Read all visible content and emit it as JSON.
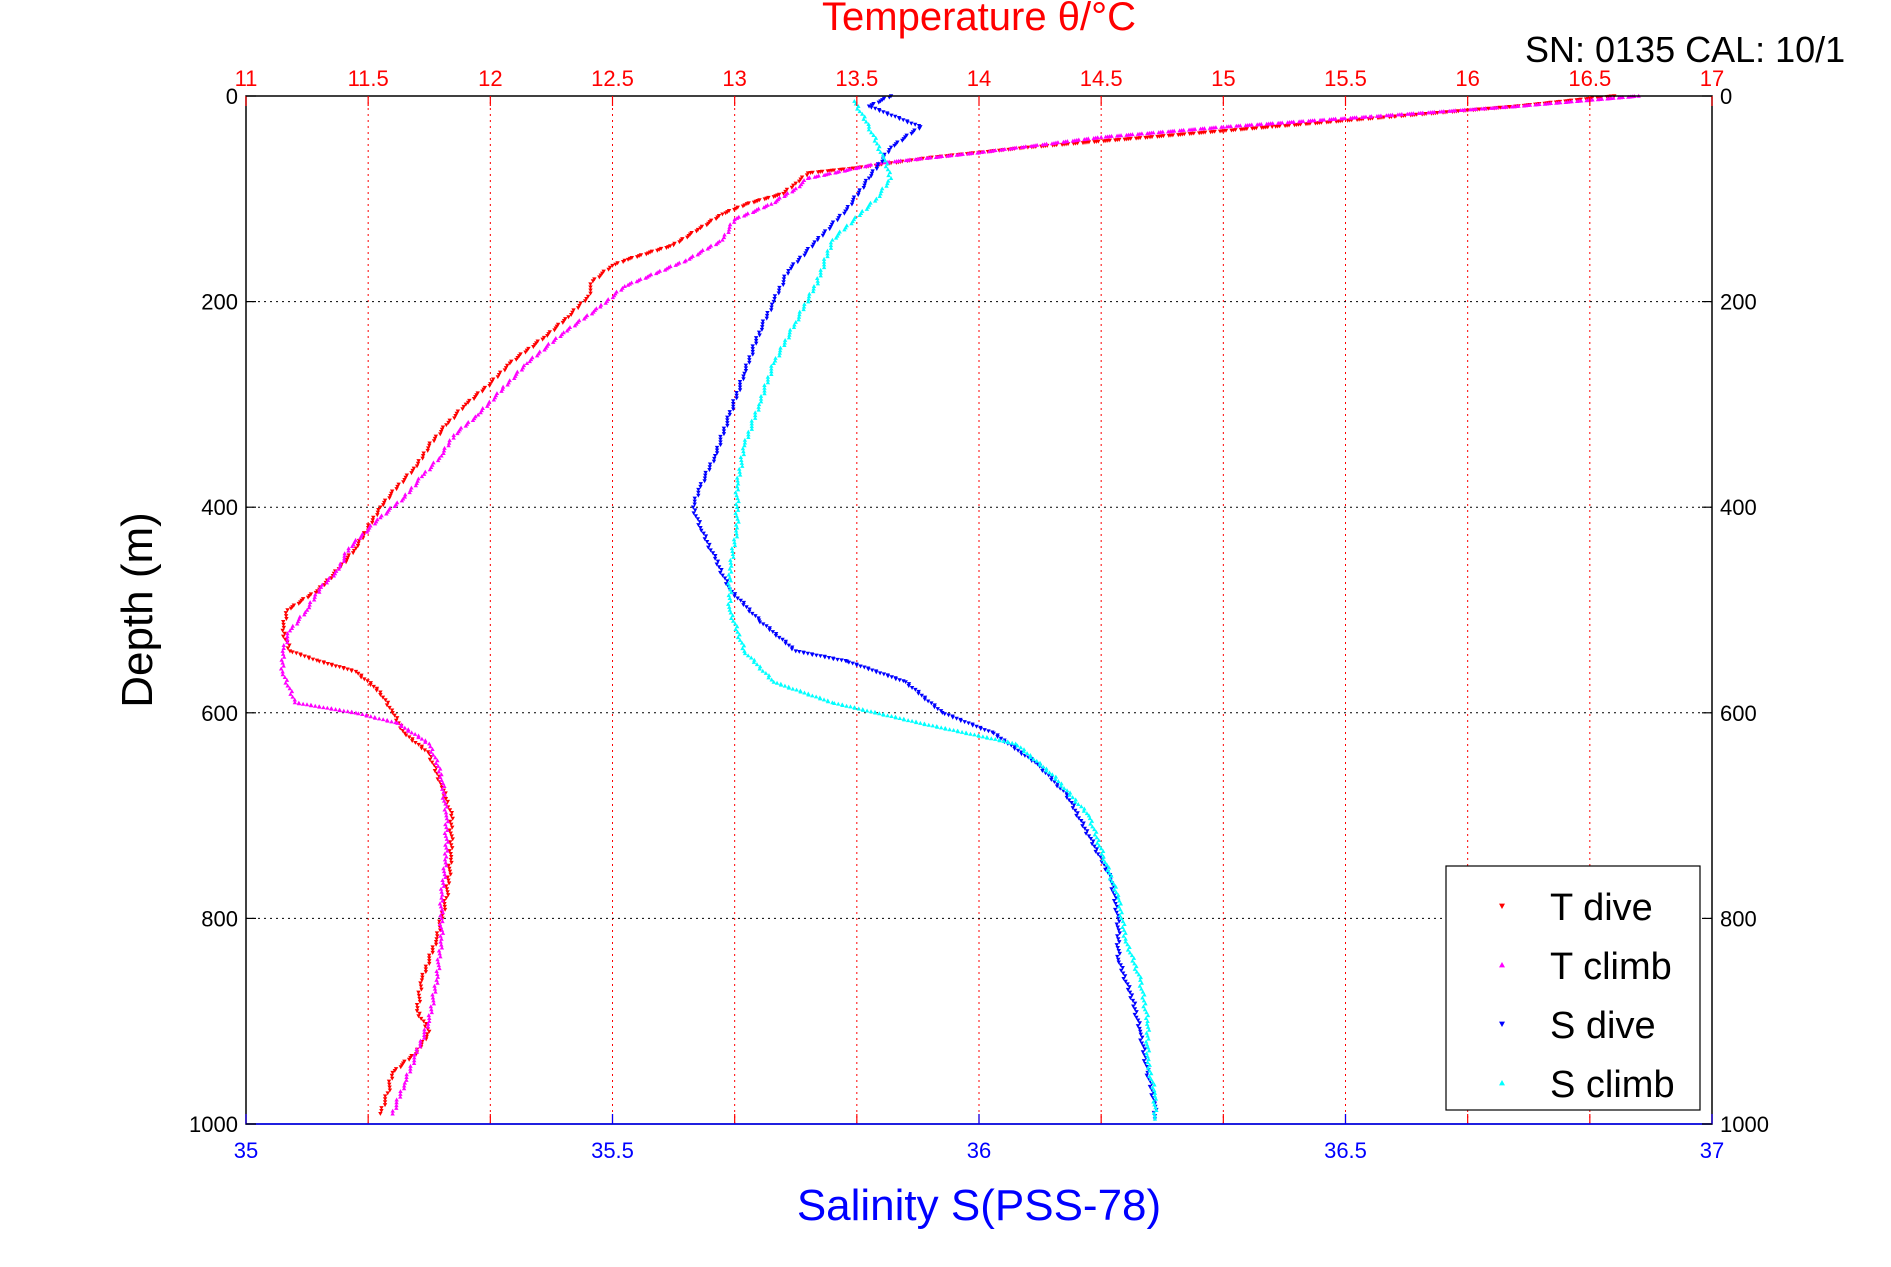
{
  "header": {
    "serial_label": "SN: 0135  CAL: 10/1"
  },
  "chart_data": {
    "type": "scatter",
    "title": "Temperature θ/°C",
    "xlabel": "Salinity S(PSS-78)",
    "ylabel": "Depth (m)",
    "y_axis": {
      "range": [
        0,
        1000
      ],
      "reversed": true,
      "ticks": [
        0,
        200,
        400,
        600,
        800,
        1000
      ],
      "mirrored_right": true
    },
    "x_axis_top": {
      "quantity": "Temperature",
      "range": [
        11,
        17
      ],
      "ticks": [
        11,
        11.5,
        12,
        12.5,
        13,
        13.5,
        14,
        14.5,
        15,
        15.5,
        16,
        16.5,
        17
      ],
      "tick_labels": [
        "11",
        "11.5",
        "12",
        "12.5",
        "13",
        "13.5",
        "14",
        "14.5",
        "15",
        "15.5",
        "16",
        "16.5",
        "17"
      ],
      "color": "#ff0000"
    },
    "x_axis_bottom": {
      "quantity": "Salinity",
      "range": [
        35,
        37
      ],
      "ticks": [
        35,
        35.5,
        36,
        36.5,
        37
      ],
      "tick_labels": [
        "35",
        "35.5",
        "36",
        "36.5",
        "37"
      ],
      "color": "#0000ff"
    },
    "grid": true,
    "legend": {
      "placement": "bottom-right",
      "entries": [
        "T dive",
        "T climb",
        "S dive",
        "S climb"
      ]
    },
    "colors": {
      "title": "#ff0000",
      "xlabel": "#0000ff",
      "t_dive": "#ff0000",
      "t_climb": "#ff00ff",
      "s_dive": "#0000ff",
      "s_climb": "#00ffff"
    },
    "series": [
      {
        "name": "T dive",
        "axis": "top",
        "marker": "triangle-down",
        "color": "#ff0000",
        "points": [
          [
            16.6,
            0
          ],
          [
            16.2,
            10
          ],
          [
            15.7,
            20
          ],
          [
            15.2,
            30
          ],
          [
            14.7,
            40
          ],
          [
            14.2,
            50
          ],
          [
            13.8,
            60
          ],
          [
            13.5,
            70
          ],
          [
            13.3,
            75
          ],
          [
            13.25,
            85
          ],
          [
            13.2,
            95
          ],
          [
            13.05,
            105
          ],
          [
            12.95,
            115
          ],
          [
            12.85,
            130
          ],
          [
            12.75,
            145
          ],
          [
            12.55,
            160
          ],
          [
            12.5,
            165
          ],
          [
            12.42,
            180
          ],
          [
            12.4,
            195
          ],
          [
            12.32,
            215
          ],
          [
            12.22,
            235
          ],
          [
            12.08,
            260
          ],
          [
            12.0,
            280
          ],
          [
            11.9,
            300
          ],
          [
            11.82,
            320
          ],
          [
            11.75,
            340
          ],
          [
            11.7,
            360
          ],
          [
            11.62,
            380
          ],
          [
            11.55,
            400
          ],
          [
            11.5,
            420
          ],
          [
            11.45,
            440
          ],
          [
            11.38,
            460
          ],
          [
            11.3,
            480
          ],
          [
            11.17,
            500
          ],
          [
            11.15,
            520
          ],
          [
            11.18,
            540
          ],
          [
            11.3,
            550
          ],
          [
            11.45,
            560
          ],
          [
            11.55,
            580
          ],
          [
            11.6,
            600
          ],
          [
            11.65,
            620
          ],
          [
            11.75,
            640
          ],
          [
            11.8,
            670
          ],
          [
            11.84,
            700
          ],
          [
            11.84,
            740
          ],
          [
            11.82,
            780
          ],
          [
            11.78,
            820
          ],
          [
            11.72,
            860
          ],
          [
            11.7,
            890
          ],
          [
            11.75,
            910
          ],
          [
            11.7,
            930
          ],
          [
            11.6,
            950
          ],
          [
            11.58,
            970
          ],
          [
            11.55,
            990
          ]
        ]
      },
      {
        "name": "T climb",
        "axis": "top",
        "marker": "triangle-up",
        "color": "#ff00ff",
        "points": [
          [
            16.7,
            0
          ],
          [
            16.2,
            10
          ],
          [
            15.6,
            20
          ],
          [
            15.0,
            30
          ],
          [
            14.5,
            40
          ],
          [
            14.0,
            55
          ],
          [
            13.6,
            65
          ],
          [
            13.3,
            80
          ],
          [
            13.25,
            90
          ],
          [
            13.15,
            105
          ],
          [
            13.0,
            120
          ],
          [
            12.95,
            140
          ],
          [
            12.8,
            160
          ],
          [
            12.55,
            185
          ],
          [
            12.45,
            205
          ],
          [
            12.3,
            230
          ],
          [
            12.15,
            260
          ],
          [
            12.05,
            285
          ],
          [
            11.95,
            310
          ],
          [
            11.85,
            330
          ],
          [
            11.8,
            350
          ],
          [
            11.72,
            370
          ],
          [
            11.65,
            390
          ],
          [
            11.55,
            410
          ],
          [
            11.42,
            440
          ],
          [
            11.38,
            460
          ],
          [
            11.3,
            480
          ],
          [
            11.25,
            500
          ],
          [
            11.18,
            520
          ],
          [
            11.15,
            540
          ],
          [
            11.15,
            560
          ],
          [
            11.2,
            590
          ],
          [
            11.45,
            600
          ],
          [
            11.62,
            610
          ],
          [
            11.75,
            630
          ],
          [
            11.8,
            660
          ],
          [
            11.82,
            700
          ],
          [
            11.82,
            740
          ],
          [
            11.8,
            780
          ],
          [
            11.8,
            820
          ],
          [
            11.78,
            860
          ],
          [
            11.75,
            900
          ],
          [
            11.7,
            930
          ],
          [
            11.65,
            960
          ],
          [
            11.6,
            990
          ]
        ]
      },
      {
        "name": "S dive",
        "axis": "bottom",
        "marker": "triangle-down",
        "color": "#0000ff",
        "points": [
          [
            35.88,
            0
          ],
          [
            35.85,
            10
          ],
          [
            35.92,
            30
          ],
          [
            35.88,
            50
          ],
          [
            35.85,
            80
          ],
          [
            35.82,
            110
          ],
          [
            35.78,
            140
          ],
          [
            35.74,
            170
          ],
          [
            35.72,
            200
          ],
          [
            35.7,
            230
          ],
          [
            35.68,
            270
          ],
          [
            35.66,
            310
          ],
          [
            35.64,
            350
          ],
          [
            35.62,
            380
          ],
          [
            35.61,
            400
          ],
          [
            35.62,
            420
          ],
          [
            35.64,
            450
          ],
          [
            35.66,
            480
          ],
          [
            35.7,
            510
          ],
          [
            35.75,
            540
          ],
          [
            35.82,
            550
          ],
          [
            35.9,
            570
          ],
          [
            35.95,
            600
          ],
          [
            36.02,
            620
          ],
          [
            36.08,
            650
          ],
          [
            36.12,
            680
          ],
          [
            36.15,
            720
          ],
          [
            36.18,
            760
          ],
          [
            36.19,
            800
          ],
          [
            36.19,
            840
          ],
          [
            36.21,
            880
          ],
          [
            36.22,
            910
          ],
          [
            36.23,
            950
          ],
          [
            36.24,
            980
          ],
          [
            36.24,
            995
          ]
        ]
      },
      {
        "name": "S climb",
        "axis": "bottom",
        "marker": "triangle-up",
        "color": "#00ffff",
        "points": [
          [
            35.83,
            5
          ],
          [
            35.85,
            30
          ],
          [
            35.87,
            60
          ],
          [
            35.88,
            80
          ],
          [
            35.86,
            100
          ],
          [
            35.8,
            140
          ],
          [
            35.78,
            180
          ],
          [
            35.75,
            220
          ],
          [
            35.72,
            260
          ],
          [
            35.7,
            300
          ],
          [
            35.68,
            340
          ],
          [
            35.67,
            380
          ],
          [
            35.67,
            420
          ],
          [
            35.66,
            460
          ],
          [
            35.66,
            500
          ],
          [
            35.68,
            540
          ],
          [
            35.72,
            570
          ],
          [
            35.8,
            590
          ],
          [
            35.92,
            610
          ],
          [
            36.05,
            630
          ],
          [
            36.1,
            660
          ],
          [
            36.15,
            700
          ],
          [
            36.17,
            740
          ],
          [
            36.19,
            780
          ],
          [
            36.2,
            820
          ],
          [
            36.22,
            860
          ],
          [
            36.23,
            900
          ],
          [
            36.23,
            940
          ],
          [
            36.24,
            970
          ],
          [
            36.24,
            995
          ]
        ]
      }
    ]
  }
}
